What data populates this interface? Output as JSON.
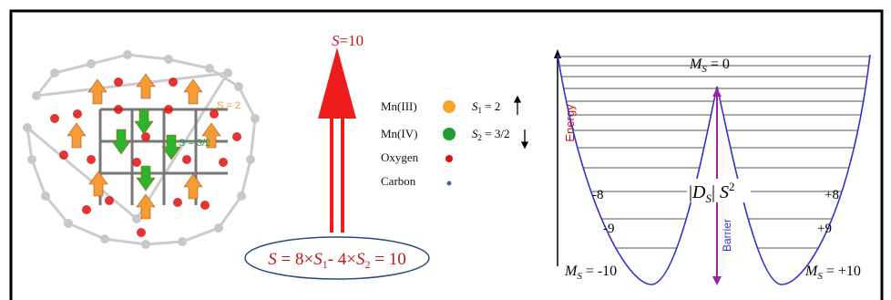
{
  "spin_total": {
    "symbol": "S",
    "rest": "=10"
  },
  "molecule_labels": {
    "mn3_spin": "S = 2",
    "mn4_spin": "S = 3/2"
  },
  "legend": [
    {
      "label": "Mn(III)",
      "spin": {
        "symbol": "S",
        "sub": "1",
        "rest": " = 2"
      }
    },
    {
      "label": "Mn(IV)",
      "spin": {
        "symbol": "S",
        "sub": "2",
        "rest": " = 3/2"
      }
    },
    {
      "label": "Oxygen"
    },
    {
      "label": "Carbon"
    }
  ],
  "equation": {
    "s": "S",
    "a": " = 8×",
    "s1": "S",
    "sub1": "1",
    "b": "- 4×",
    "s2": "S",
    "sub2": "2",
    "c": " = 10"
  },
  "energy_diagram": {
    "axis_label": "Energy",
    "top_label": {
      "symbol": "M",
      "sub": "S",
      "rest": " = 0"
    },
    "left_levels": [
      "-8",
      "-9"
    ],
    "right_levels": [
      "+8",
      "+9"
    ],
    "left_bottom": {
      "symbol": "M",
      "sub": "S",
      "rest": " = -10"
    },
    "right_bottom": {
      "symbol": "M",
      "sub": "S",
      "rest": " = +10"
    },
    "barrier_term": {
      "open": "|",
      "symbol": "D",
      "sub": "S",
      "close": "|",
      "spin": " S",
      "sup": "2"
    },
    "barrier_label": "Barrier"
  }
}
